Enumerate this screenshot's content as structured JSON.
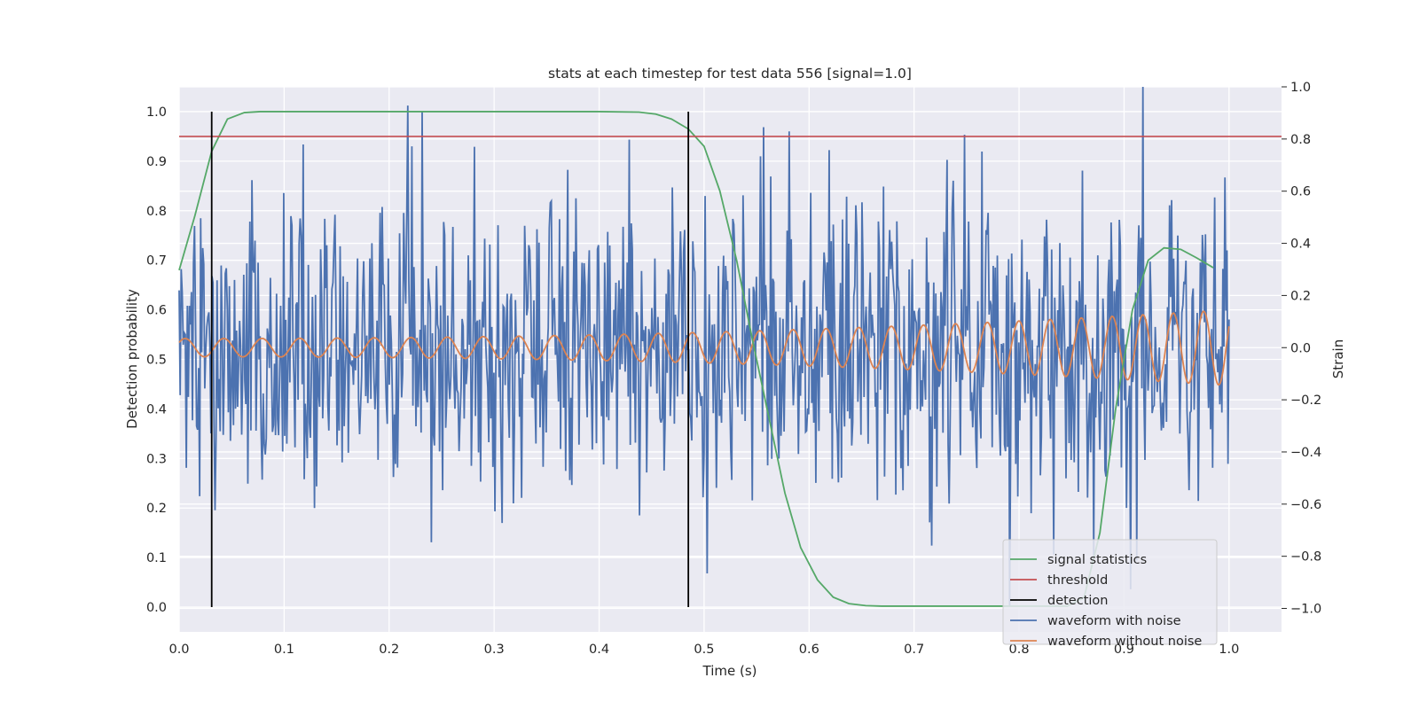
{
  "chart_data": {
    "type": "line",
    "title": "stats at each timestep for test data 556 [signal=1.0]",
    "xlabel": "Time (s)",
    "ylabel_left": "Detection probability",
    "ylabel_right": "Strain",
    "xlim": [
      0.0,
      1.05
    ],
    "ylim_left": [
      -0.05,
      1.05
    ],
    "ylim_right": [
      -1.09,
      1.0
    ],
    "x_ticks": [
      0.0,
      0.1,
      0.2,
      0.3,
      0.4,
      0.5,
      0.6,
      0.7,
      0.8,
      0.9,
      1.0
    ],
    "x_tick_labels": [
      "0.0",
      "0.1",
      "0.2",
      "0.3",
      "0.4",
      "0.5",
      "0.6",
      "0.7",
      "0.8",
      "0.9",
      "1.0"
    ],
    "y_left_ticks": [
      0.0,
      0.1,
      0.2,
      0.3,
      0.4,
      0.5,
      0.6,
      0.7,
      0.8,
      0.9,
      1.0
    ],
    "y_left_tick_labels": [
      "0.0",
      "0.1",
      "0.2",
      "0.3",
      "0.4",
      "0.5",
      "0.6",
      "0.7",
      "0.8",
      "0.9",
      "1.0"
    ],
    "y_right_ticks": [
      -1.0,
      -0.8,
      -0.6,
      -0.4,
      -0.2,
      0.0,
      0.2,
      0.4,
      0.6,
      0.8,
      1.0
    ],
    "y_right_tick_labels": [
      "−1.0",
      "−0.8",
      "−0.6",
      "−0.4",
      "−0.2",
      "0.0",
      "0.2",
      "0.4",
      "0.6",
      "0.8",
      "1.0"
    ],
    "grid": true,
    "legend_position": "bottom-right",
    "threshold": 0.95,
    "detections": [
      0.031,
      0.485
    ],
    "signal_statistics": {
      "name": "signal statistics",
      "color": "#55a868",
      "axis": "left",
      "x": [
        0.0,
        0.015,
        0.031,
        0.046,
        0.062,
        0.077,
        0.093,
        0.2,
        0.3,
        0.4,
        0.438,
        0.454,
        0.469,
        0.485,
        0.5,
        0.515,
        0.531,
        0.546,
        0.562,
        0.577,
        0.592,
        0.608,
        0.623,
        0.638,
        0.654,
        0.669,
        0.7,
        0.8,
        0.846,
        0.862,
        0.877,
        0.892,
        0.908,
        0.923,
        0.938,
        0.954,
        0.969,
        0.985
      ],
      "y": [
        0.68,
        0.79,
        0.92,
        0.985,
        0.998,
        1.0,
        1.0,
        1.0,
        1.0,
        1.0,
        0.999,
        0.995,
        0.985,
        0.965,
        0.93,
        0.84,
        0.7,
        0.54,
        0.38,
        0.23,
        0.12,
        0.055,
        0.02,
        0.007,
        0.003,
        0.002,
        0.002,
        0.002,
        0.002,
        0.02,
        0.15,
        0.4,
        0.6,
        0.7,
        0.725,
        0.722,
        0.705,
        0.685
      ]
    },
    "waveform_without_noise": {
      "name": "waveform without noise",
      "color": "#dd8452",
      "axis": "right",
      "description_function": "chirp"
    },
    "waveform_with_noise": {
      "name": "waveform with noise",
      "color": "#4c72b0",
      "axis": "right"
    },
    "legend": [
      {
        "label": "signal statistics",
        "color": "#55a868"
      },
      {
        "label": "threshold",
        "color": "#c44e52"
      },
      {
        "label": "detection",
        "color": "#000000"
      },
      {
        "label": "waveform with noise",
        "color": "#4c72b0"
      },
      {
        "label": "waveform without noise",
        "color": "#dd8452"
      }
    ]
  }
}
